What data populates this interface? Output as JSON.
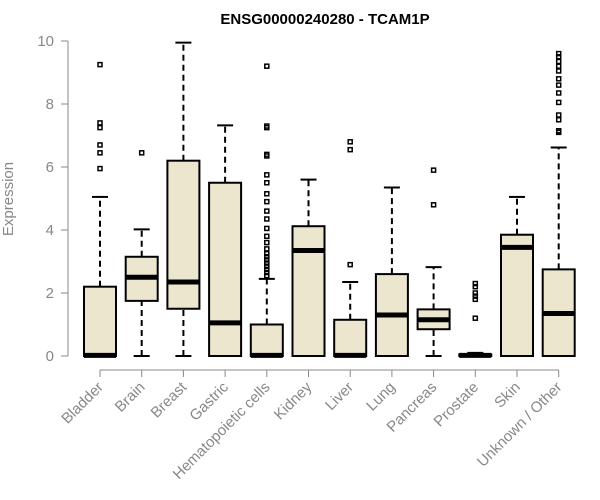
{
  "chart_data": {
    "type": "box",
    "title": "ENSG00000240280 - TCAM1P",
    "xlabel": "",
    "ylabel": "Expression",
    "ylim": [
      0,
      10
    ],
    "yticks": [
      0,
      2,
      4,
      6,
      8,
      10
    ],
    "grid": false,
    "box_fill": "#EDE6CF",
    "categories": [
      "Bladder",
      "Brain",
      "Breast",
      "Gastric",
      "Hematopoietic cells",
      "Kidney",
      "Liver",
      "Lung",
      "Pancreas",
      "Prostate",
      "Skin",
      "Unknown / Other"
    ],
    "boxes": [
      {
        "name": "Bladder",
        "whisker_low": 0,
        "q1": 0,
        "median": 0.02,
        "q3": 2.2,
        "whisker_high": 5.05,
        "outliers": [
          5.95,
          6.45,
          6.7,
          7.25,
          7.4,
          9.25
        ]
      },
      {
        "name": "Brain",
        "whisker_low": 0,
        "q1": 1.75,
        "median": 2.5,
        "q3": 3.15,
        "whisker_high": 4.02,
        "outliers": [
          6.45
        ]
      },
      {
        "name": "Breast",
        "whisker_low": 0,
        "q1": 1.5,
        "median": 2.35,
        "q3": 6.2,
        "whisker_high": 9.95,
        "outliers": []
      },
      {
        "name": "Gastric",
        "whisker_low": 0,
        "q1": 0,
        "median": 1.05,
        "q3": 5.5,
        "whisker_high": 7.32,
        "outliers": []
      },
      {
        "name": "Hematopoietic cells",
        "whisker_low": 0,
        "q1": 0,
        "median": 0.02,
        "q3": 1.0,
        "whisker_high": 2.45,
        "outliers": [
          2.55,
          2.65,
          2.75,
          2.85,
          2.95,
          3.05,
          3.15,
          3.25,
          3.4,
          3.6,
          3.8,
          4.05,
          4.35,
          4.6,
          4.9,
          5.15,
          5.5,
          5.75,
          6.35,
          6.4,
          7.25,
          7.3,
          9.2
        ]
      },
      {
        "name": "Kidney",
        "whisker_low": 0,
        "q1": 0,
        "median": 3.35,
        "q3": 4.12,
        "whisker_high": 5.6,
        "outliers": []
      },
      {
        "name": "Liver",
        "whisker_low": 0,
        "q1": 0,
        "median": 0.02,
        "q3": 1.15,
        "whisker_high": 2.35,
        "outliers": [
          2.9,
          6.55,
          6.8
        ]
      },
      {
        "name": "Lung",
        "whisker_low": 0,
        "q1": 0,
        "median": 1.3,
        "q3": 2.6,
        "whisker_high": 5.35,
        "outliers": []
      },
      {
        "name": "Pancreas",
        "whisker_low": 0,
        "q1": 0.85,
        "median": 1.15,
        "q3": 1.48,
        "whisker_high": 2.82,
        "outliers": [
          4.8,
          5.9
        ]
      },
      {
        "name": "Prostate",
        "whisker_low": 0,
        "q1": 0,
        "median": 0.02,
        "q3": 0.05,
        "whisker_high": 0.1,
        "outliers": [
          1.2,
          1.8,
          1.9,
          2.0,
          2.2,
          2.3
        ]
      },
      {
        "name": "Skin",
        "whisker_low": 0,
        "q1": 0,
        "median": 3.45,
        "q3": 3.85,
        "whisker_high": 5.05,
        "outliers": []
      },
      {
        "name": "Unknown / Other",
        "whisker_low": 0,
        "q1": 0,
        "median": 1.35,
        "q3": 2.75,
        "whisker_high": 6.62,
        "outliers": [
          7.1,
          7.15,
          7.5,
          7.65,
          8.05,
          8.35,
          8.6,
          8.8,
          9.05,
          9.2,
          9.35,
          9.5,
          9.6
        ]
      }
    ]
  }
}
